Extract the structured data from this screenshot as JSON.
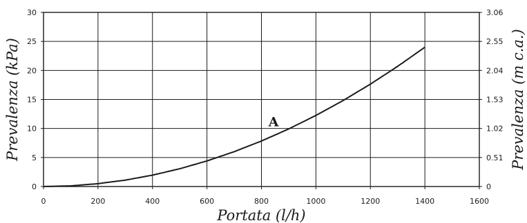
{
  "chart_data": {
    "type": "line",
    "xlabel": "Portata (l/h)",
    "ylabel": "Prevalenza (kPa)",
    "y2label": "Prevalenza (m c.a.)",
    "xlim": [
      0,
      1600
    ],
    "ylim": [
      0,
      30
    ],
    "xticks": [
      "0",
      "200",
      "400",
      "600",
      "800",
      "1000",
      "1200",
      "1400",
      "1600"
    ],
    "yticks": [
      "0",
      "5",
      "10",
      "15",
      "20",
      "25",
      "30"
    ],
    "y2ticks": [
      "0",
      "0.51",
      "1.02",
      "1.53",
      "2.04",
      "2.55",
      "3.06"
    ],
    "grid": true,
    "series": [
      {
        "name": "A",
        "x": [
          0,
          100,
          200,
          300,
          400,
          500,
          600,
          700,
          800,
          900,
          1000,
          1100,
          1200,
          1300,
          1400
        ],
        "y": [
          0,
          0.12,
          0.49,
          1.1,
          1.96,
          3.06,
          4.41,
          6.0,
          7.84,
          9.92,
          12.25,
          14.82,
          17.64,
          20.7,
          24.0
        ]
      }
    ],
    "colors": {
      "line": "#1a1a1a",
      "grid": "#1a1a1a"
    }
  }
}
